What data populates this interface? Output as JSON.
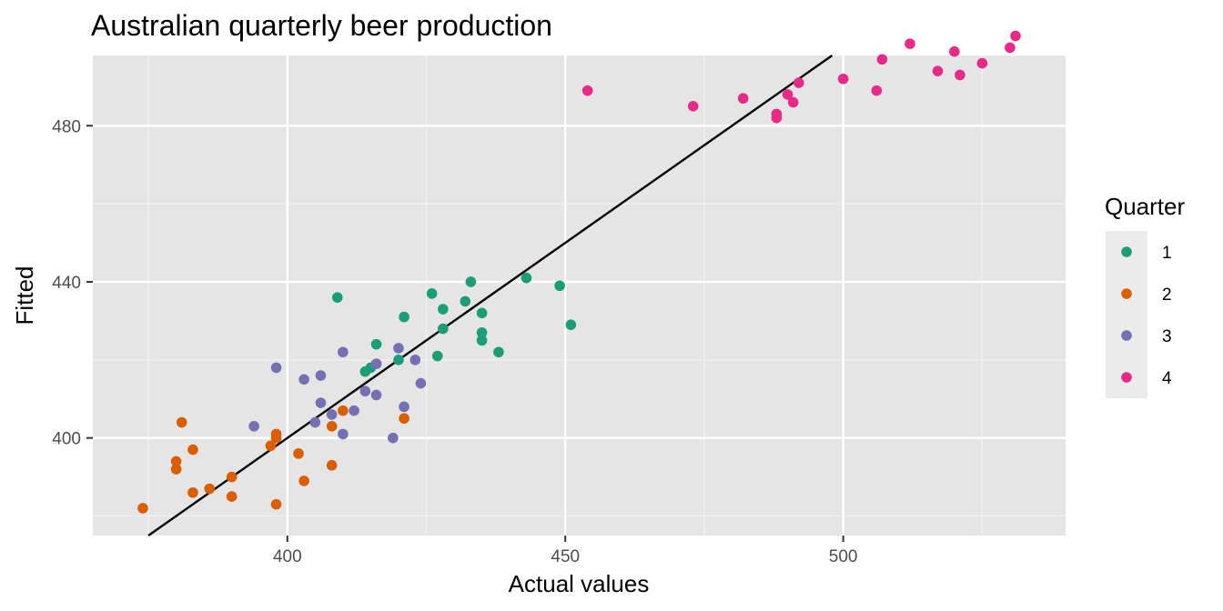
{
  "chart_data": {
    "type": "scatter",
    "title": "Australian quarterly beer production",
    "xlabel": "Actual values",
    "ylabel": "Fitted",
    "xlim": [
      365,
      540
    ],
    "ylim": [
      375,
      498
    ],
    "x_ticks": [
      400,
      450,
      500
    ],
    "x_minor_ticks": [
      375,
      425,
      475,
      525
    ],
    "y_ticks": [
      400,
      440,
      480
    ],
    "y_minor_ticks": [
      380,
      420,
      460
    ],
    "grid": true,
    "background": "#e5e5e5",
    "legend": {
      "title": "Quarter",
      "position": "right"
    },
    "reference_line": {
      "type": "identity",
      "slope": 1,
      "intercept": 0,
      "color": "#000000"
    },
    "series": [
      {
        "name": "1",
        "color": "#1b9e77",
        "points": [
          [
            409,
            436
          ],
          [
            414,
            417
          ],
          [
            415,
            418
          ],
          [
            416,
            419
          ],
          [
            416,
            424
          ],
          [
            420,
            420
          ],
          [
            421,
            431
          ],
          [
            426,
            437
          ],
          [
            427,
            421
          ],
          [
            428,
            428
          ],
          [
            428,
            433
          ],
          [
            432,
            435
          ],
          [
            433,
            440
          ],
          [
            435,
            425
          ],
          [
            435,
            427
          ],
          [
            435,
            432
          ],
          [
            438,
            422
          ],
          [
            443,
            441
          ],
          [
            449,
            439
          ],
          [
            451,
            429
          ]
        ]
      },
      {
        "name": "2",
        "color": "#d95f02",
        "points": [
          [
            374,
            382
          ],
          [
            380,
            392
          ],
          [
            380,
            394
          ],
          [
            381,
            404
          ],
          [
            383,
            386
          ],
          [
            383,
            397
          ],
          [
            386,
            387
          ],
          [
            390,
            385
          ],
          [
            390,
            390
          ],
          [
            397,
            398
          ],
          [
            398,
            383
          ],
          [
            398,
            400
          ],
          [
            398,
            401
          ],
          [
            402,
            396
          ],
          [
            403,
            389
          ],
          [
            408,
            393
          ],
          [
            408,
            403
          ],
          [
            410,
            407
          ],
          [
            421,
            405
          ]
        ]
      },
      {
        "name": "3",
        "color": "#7570b3",
        "points": [
          [
            394,
            403
          ],
          [
            398,
            418
          ],
          [
            403,
            415
          ],
          [
            405,
            404
          ],
          [
            406,
            409
          ],
          [
            406,
            416
          ],
          [
            408,
            406
          ],
          [
            410,
            401
          ],
          [
            410,
            422
          ],
          [
            412,
            407
          ],
          [
            414,
            412
          ],
          [
            416,
            411
          ],
          [
            416,
            419
          ],
          [
            419,
            400
          ],
          [
            420,
            423
          ],
          [
            421,
            408
          ],
          [
            423,
            420
          ],
          [
            424,
            414
          ]
        ]
      },
      {
        "name": "4",
        "color": "#e7298a",
        "points": [
          [
            454,
            489
          ],
          [
            473,
            485
          ],
          [
            482,
            487
          ],
          [
            488,
            482
          ],
          [
            488,
            483
          ],
          [
            490,
            488
          ],
          [
            491,
            486
          ],
          [
            492,
            491
          ],
          [
            500,
            492
          ],
          [
            506,
            489
          ],
          [
            507,
            497
          ],
          [
            512,
            501
          ],
          [
            517,
            494
          ],
          [
            520,
            499
          ],
          [
            521,
            493
          ],
          [
            525,
            496
          ],
          [
            530,
            500
          ],
          [
            531,
            503
          ]
        ]
      }
    ]
  }
}
